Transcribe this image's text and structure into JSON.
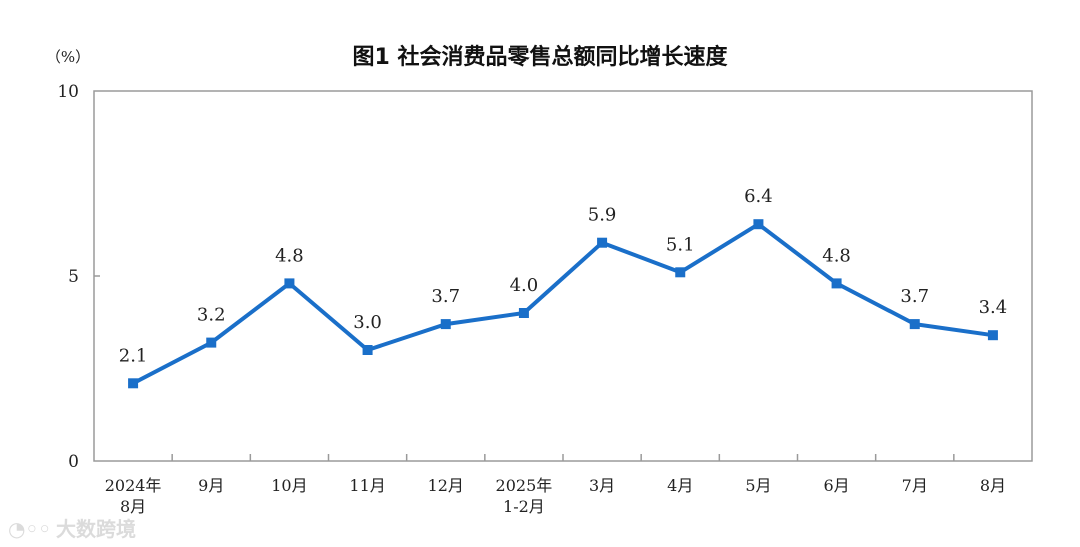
{
  "chart_data": {
    "type": "line",
    "title": "图1  社会消费品零售总额同比增长速度",
    "unit_label": "（%）",
    "ylim": [
      0,
      10
    ],
    "yticks": [
      0,
      5,
      10
    ],
    "categories": [
      [
        "2024年",
        "8月"
      ],
      [
        "9月"
      ],
      [
        "10月"
      ],
      [
        "11月"
      ],
      [
        "12月"
      ],
      [
        "2025年",
        "1-2月"
      ],
      [
        "3月"
      ],
      [
        "4月"
      ],
      [
        "5月"
      ],
      [
        "6月"
      ],
      [
        "7月"
      ],
      [
        "8月"
      ]
    ],
    "series": [
      {
        "name": "社会消费品零售总额同比增长速度",
        "values": [
          2.1,
          3.2,
          4.8,
          3.0,
          3.7,
          4.0,
          5.9,
          5.1,
          6.4,
          4.8,
          3.7,
          3.4
        ],
        "color": "#1a6fc9"
      }
    ],
    "data_labels": [
      "2.1",
      "3.2",
      "4.8",
      "3.0",
      "3.7",
      "4.0",
      "5.9",
      "5.1",
      "6.4",
      "4.8",
      "3.7",
      "3.4"
    ]
  },
  "watermark": "大数跨境"
}
